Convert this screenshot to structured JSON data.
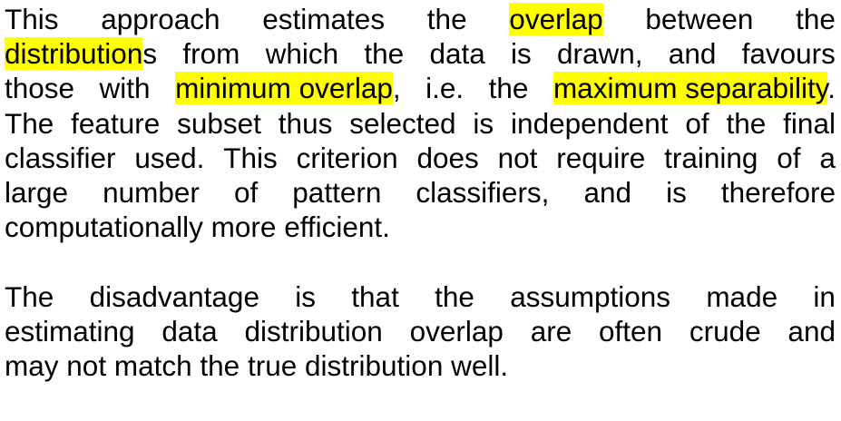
{
  "highlight_color": "#ffff00",
  "paragraph1": {
    "lines": [
      {
        "justify": true,
        "words": [
          [
            "This"
          ],
          [
            "approach"
          ],
          [
            "estimates"
          ],
          [
            "the"
          ],
          [
            {
              "t": "overlap",
              "hl": true
            }
          ],
          [
            "between"
          ],
          [
            "the"
          ]
        ]
      },
      {
        "justify": true,
        "words": [
          [
            {
              "t": "distribution",
              "hl": true
            },
            "s"
          ],
          [
            "from"
          ],
          [
            "which"
          ],
          [
            "the"
          ],
          [
            "data"
          ],
          [
            "is"
          ],
          [
            "drawn,"
          ],
          [
            "and"
          ],
          [
            "favours"
          ]
        ]
      },
      {
        "justify": true,
        "words": [
          [
            "those"
          ],
          [
            "with"
          ],
          [
            {
              "t": "minimum overlap",
              "hl": true
            },
            ","
          ],
          [
            "i.e."
          ],
          [
            "the"
          ],
          [
            {
              "t": "maximum separability",
              "hl": true
            },
            "."
          ]
        ]
      },
      {
        "justify": true,
        "words": [
          [
            "The"
          ],
          [
            "feature"
          ],
          [
            "subset"
          ],
          [
            "thus"
          ],
          [
            "selected"
          ],
          [
            "is"
          ],
          [
            "independent"
          ],
          [
            "of"
          ],
          [
            "the"
          ],
          [
            "final"
          ]
        ]
      },
      {
        "justify": true,
        "words": [
          [
            "classifier"
          ],
          [
            "used."
          ],
          [
            "This"
          ],
          [
            "criterion"
          ],
          [
            "does"
          ],
          [
            "not"
          ],
          [
            "require"
          ],
          [
            "training"
          ],
          [
            "of"
          ],
          [
            "a"
          ]
        ]
      },
      {
        "justify": true,
        "words": [
          [
            "large"
          ],
          [
            "number"
          ],
          [
            "of"
          ],
          [
            "pattern"
          ],
          [
            "classifiers,"
          ],
          [
            "and"
          ],
          [
            "is"
          ],
          [
            "therefore"
          ]
        ]
      },
      {
        "justify": false,
        "words": [
          [
            "computationally"
          ],
          [
            "more"
          ],
          [
            "efficient."
          ]
        ]
      }
    ]
  },
  "paragraph2": {
    "lines": [
      {
        "justify": true,
        "words": [
          [
            "The"
          ],
          [
            "disadvantage"
          ],
          [
            "is"
          ],
          [
            "that"
          ],
          [
            "the"
          ],
          [
            "assumptions"
          ],
          [
            "made"
          ],
          [
            "in"
          ]
        ]
      },
      {
        "justify": true,
        "words": [
          [
            "estimating"
          ],
          [
            "data"
          ],
          [
            "distribution"
          ],
          [
            "overlap"
          ],
          [
            "are"
          ],
          [
            "often"
          ],
          [
            "crude"
          ],
          [
            "and"
          ]
        ]
      },
      {
        "justify": false,
        "words": [
          [
            "may"
          ],
          [
            "not"
          ],
          [
            "match"
          ],
          [
            "the"
          ],
          [
            "true"
          ],
          [
            "distribution"
          ],
          [
            "well."
          ]
        ]
      }
    ]
  }
}
